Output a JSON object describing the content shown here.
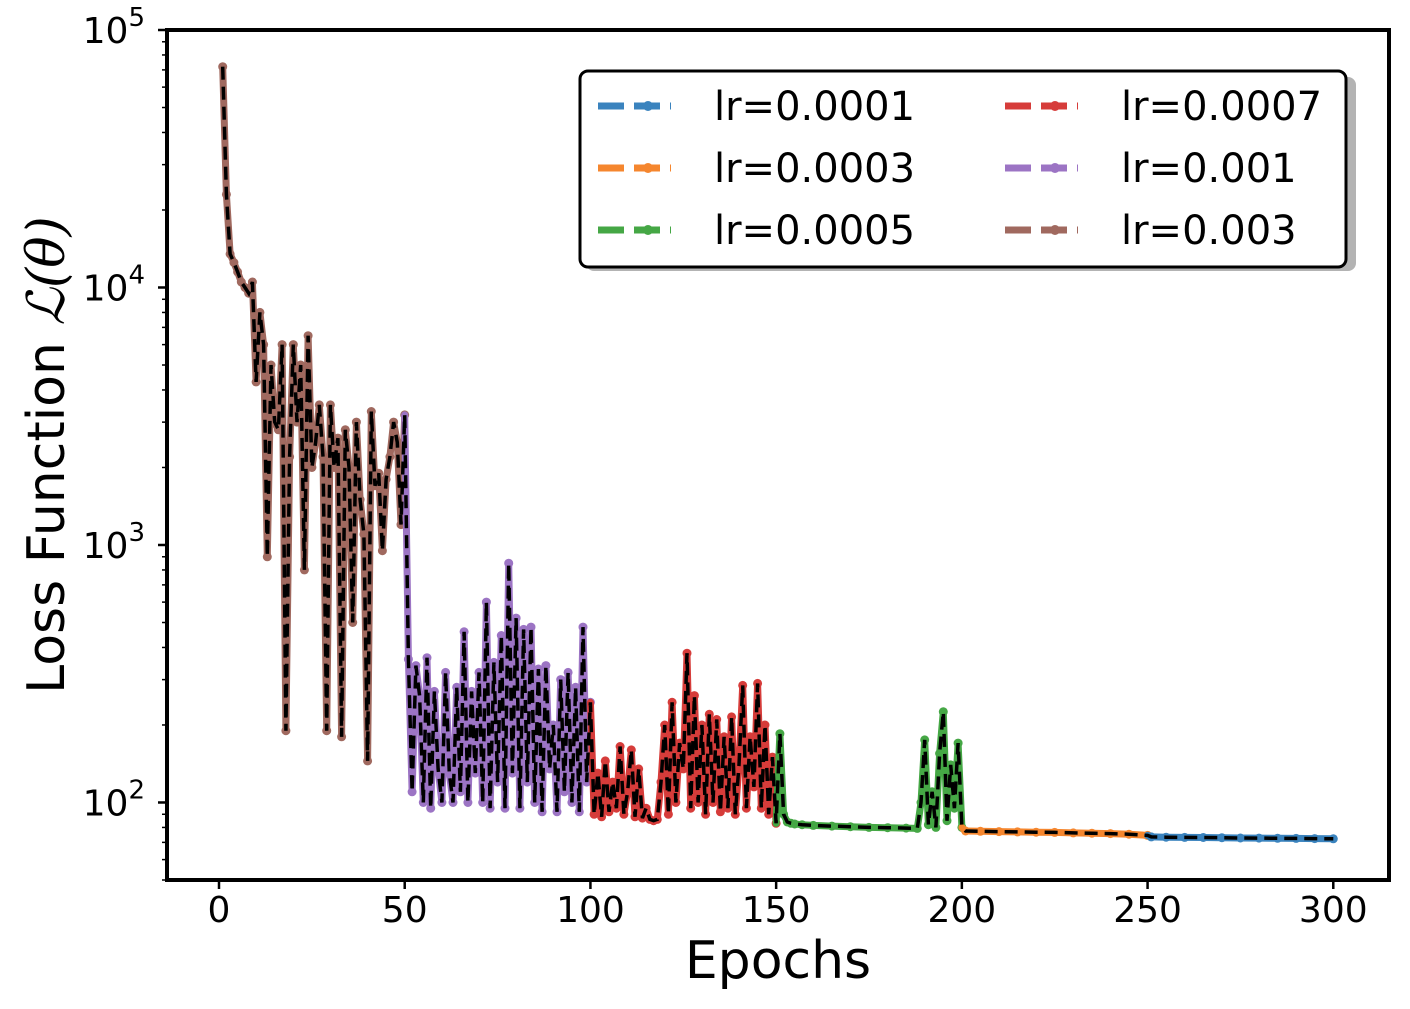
{
  "chart_data": {
    "type": "line",
    "title": "",
    "xlabel": "Epochs",
    "ylabel_text": "Loss Function ",
    "ylabel_math": "ℒ(θ)",
    "x_ticks": [
      0,
      50,
      100,
      150,
      200,
      250,
      300
    ],
    "y_ticks": [
      {
        "value": 100,
        "base": "10",
        "exp": "2"
      },
      {
        "value": 1000,
        "base": "10",
        "exp": "3"
      },
      {
        "value": 10000,
        "base": "10",
        "exp": "4"
      },
      {
        "value": 100000,
        "base": "10",
        "exp": "5"
      }
    ],
    "xlim": [
      -14,
      315
    ],
    "ylim": [
      50,
      100000
    ],
    "yscale": "log",
    "grid": false,
    "legend": {
      "placement": "upper-right",
      "columns": 2
    },
    "overlay": {
      "color": "#000000",
      "dash": "dashed",
      "description": "black dashed line overlaying all series"
    },
    "series": [
      {
        "name": "lr=0.0001",
        "color": "#3a83be",
        "epoch_range": [
          251,
          300
        ],
        "x": [
          251,
          255,
          260,
          265,
          270,
          275,
          280,
          285,
          290,
          295,
          300
        ],
        "y": [
          73.5,
          73.3,
          73.2,
          73.1,
          73.0,
          72.8,
          72.7,
          72.6,
          72.5,
          72.4,
          72.3
        ]
      },
      {
        "name": "lr=0.0003",
        "color": "#f5862e",
        "epoch_range": [
          201,
          250
        ],
        "x": [
          201,
          205,
          210,
          215,
          220,
          225,
          230,
          235,
          240,
          245,
          250
        ],
        "y": [
          77.5,
          77.3,
          77.1,
          76.9,
          76.7,
          76.5,
          76.2,
          76.0,
          75.7,
          75.3,
          74.5
        ]
      },
      {
        "name": "lr=0.0005",
        "color": "#45a745",
        "epoch_range": [
          151,
          200
        ],
        "x": [
          151,
          152,
          153,
          154,
          155,
          157,
          160,
          165,
          170,
          175,
          180,
          185,
          188,
          189,
          190,
          191,
          192,
          193,
          194,
          195,
          196,
          197,
          198,
          199,
          200
        ],
        "y": [
          185,
          90,
          84,
          83,
          82.5,
          82,
          81.5,
          81,
          80.5,
          80,
          79.8,
          79.5,
          79.3,
          100,
          175,
          82,
          110,
          80,
          155,
          225,
          85,
          140,
          95,
          170,
          80
        ]
      },
      {
        "name": "lr=0.0007",
        "color": "#d63c3a",
        "epoch_range": [
          101,
          150
        ],
        "x": [
          101,
          102,
          103,
          104,
          105,
          106,
          107,
          108,
          109,
          110,
          111,
          112,
          113,
          114,
          115,
          116,
          117,
          118,
          119,
          120,
          121,
          122,
          123,
          124,
          125,
          126,
          127,
          128,
          129,
          130,
          131,
          132,
          133,
          134,
          135,
          136,
          137,
          138,
          139,
          140,
          141,
          142,
          143,
          144,
          145,
          146,
          147,
          148,
          149,
          150
        ],
        "y": [
          90,
          130,
          88,
          145,
          92,
          120,
          95,
          165,
          90,
          110,
          160,
          88,
          135,
          87,
          95,
          86,
          85,
          86,
          120,
          200,
          90,
          245,
          100,
          170,
          135,
          380,
          95,
          260,
          100,
          200,
          90,
          220,
          100,
          210,
          92,
          180,
          95,
          215,
          90,
          140,
          285,
          95,
          180,
          115,
          290,
          95,
          200,
          90,
          150,
          83
        ]
      },
      {
        "name": "lr=0.001",
        "color": "#9c74c4",
        "epoch_range": [
          51,
          100
        ],
        "x": [
          51,
          52,
          53,
          54,
          55,
          56,
          57,
          58,
          59,
          60,
          61,
          62,
          63,
          64,
          65,
          66,
          67,
          68,
          69,
          70,
          71,
          72,
          73,
          74,
          75,
          76,
          77,
          78,
          79,
          80,
          81,
          82,
          83,
          84,
          85,
          86,
          87,
          88,
          89,
          90,
          91,
          92,
          93,
          94,
          95,
          96,
          97,
          98,
          99,
          100
        ],
        "y": [
          360,
          110,
          340,
          260,
          100,
          365,
          95,
          270,
          135,
          100,
          320,
          130,
          100,
          280,
          110,
          460,
          100,
          270,
          130,
          320,
          100,
          600,
          95,
          350,
          120,
          445,
          95,
          850,
          130,
          520,
          95,
          470,
          120,
          480,
          100,
          330,
          92,
          340,
          135,
          200,
          92,
          300,
          110,
          320,
          100,
          280,
          92,
          480,
          120,
          245
        ]
      },
      {
        "name": "lr=0.003",
        "color": "#a0695f",
        "epoch_range": [
          1,
          50
        ],
        "x": [
          1,
          2,
          3,
          4,
          5,
          6,
          7,
          8,
          9,
          10,
          11,
          12,
          13,
          14,
          15,
          16,
          17,
          18,
          19,
          20,
          21,
          22,
          23,
          24,
          25,
          26,
          27,
          28,
          29,
          30,
          31,
          32,
          33,
          34,
          35,
          36,
          37,
          38,
          39,
          40,
          41,
          42,
          43,
          44,
          45,
          46,
          47,
          48,
          49,
          50
        ],
        "y": [
          72000,
          23000,
          13500,
          12500,
          11500,
          10500,
          10000,
          9500,
          10500,
          4300,
          8000,
          6000,
          900,
          5000,
          3000,
          2800,
          6000,
          190,
          2200,
          6000,
          3000,
          5000,
          800,
          6500,
          2000,
          2500,
          3500,
          2200,
          190,
          3500,
          2000,
          2600,
          180,
          2800,
          2000,
          500,
          3000,
          1500,
          1100,
          145,
          3300,
          1700,
          1900,
          950,
          1800,
          2200,
          3000,
          2500,
          1200,
          3200
        ]
      }
    ]
  }
}
